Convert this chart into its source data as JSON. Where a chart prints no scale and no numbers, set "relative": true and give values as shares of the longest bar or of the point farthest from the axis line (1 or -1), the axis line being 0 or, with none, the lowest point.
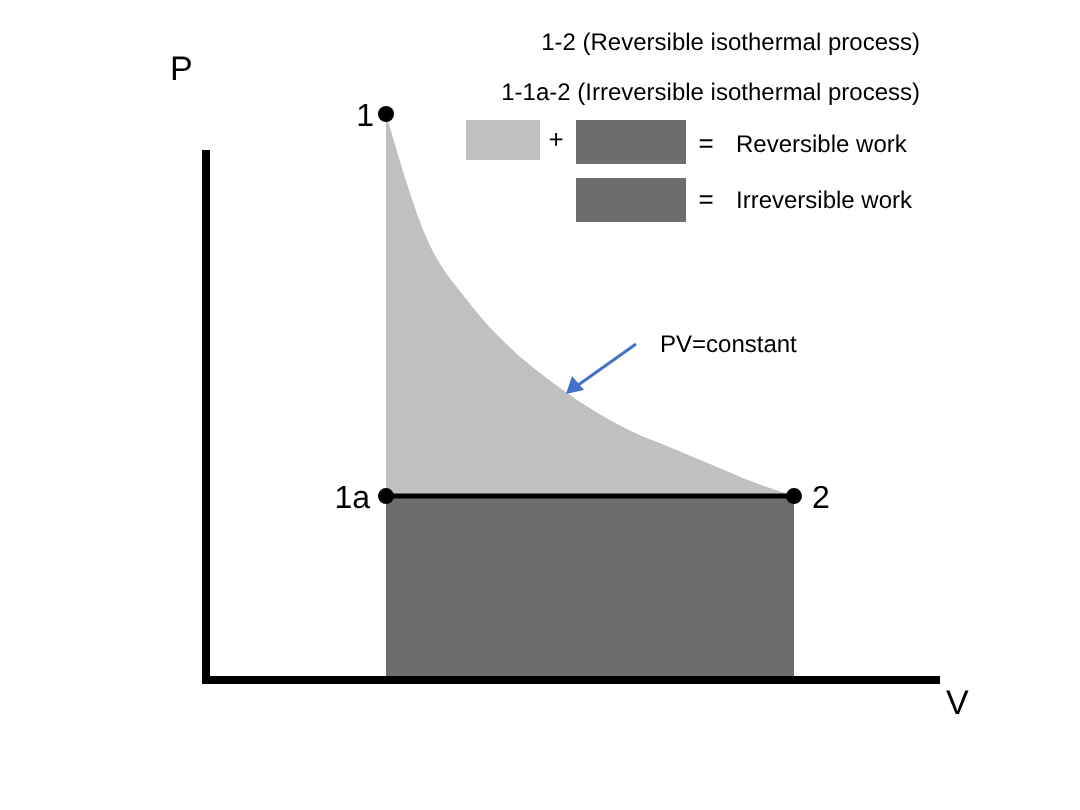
{
  "chart_data": {
    "type": "area",
    "relative": true,
    "xlabel": "V",
    "categories": [
      null,
      null,
      null,
      null,
      null,
      null,
      null,
      null,
      null,
      null,
      null
    ],
    "series": [
      {
        "color": "#c0c0c0",
        "values": [
          1,
          0.78,
          0.67,
          0.59,
          0.53,
          0.48,
          0.44,
          0.41,
          0.38,
          0.35,
          0.325
        ]
      },
      {
        "color": "#6d6d6d",
        "values": [
          0.325,
          0.325,
          0.325,
          0.325,
          0.325,
          0.325,
          0.325,
          0.325,
          0.325,
          0.325,
          0.325
        ]
      }
    ],
    "annotations": [
      "1",
      "1a",
      "2",
      "P",
      "1-2 (Reversible isothermal process)",
      "1-1a-2 (Irreversible isothermal process)",
      "+",
      "=",
      "Reversible work",
      "=",
      "Irreversible work",
      "PV=constant"
    ]
  }
}
